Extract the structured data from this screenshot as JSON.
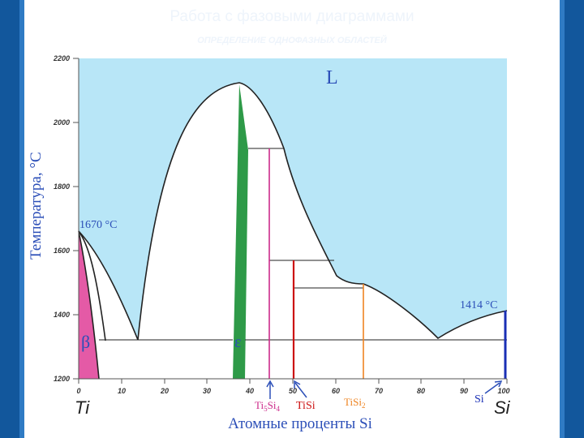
{
  "slide": {
    "title": "Работа с фазовыми диаграммами",
    "subtitle": "ОПРЕДЕЛЕНИЕ ОДНОФАЗНЫХ ОБЛАСТЕЙ"
  },
  "diagram": {
    "y_axis_label": "Температура, °C",
    "x_axis_label": "Атомные проценты Si",
    "y_ticks": [
      "2200",
      "2000",
      "1800",
      "1600",
      "1400",
      "1200"
    ],
    "x_ticks": [
      "0",
      "10",
      "20",
      "30",
      "40",
      "50",
      "60",
      "70",
      "80",
      "90",
      "100"
    ],
    "element_left": "Ti",
    "element_right": "Si",
    "liquid_label": "L",
    "beta_label": "β",
    "epsilon_label": "ε",
    "ti_melting_label": "1670 °C",
    "si_melting_label": "1414 °C",
    "compounds": [
      {
        "base": "Ti",
        "sub1": "5",
        "mid": "Si",
        "sub2": "4",
        "color": "#cc2a8a"
      },
      {
        "base": "TiSi",
        "sub1": "",
        "mid": "",
        "sub2": "",
        "color": "#cc1111"
      },
      {
        "base": "TiSi",
        "sub1": "2",
        "mid": "",
        "sub2": "",
        "color": "#ee8422"
      },
      {
        "base": "Si",
        "sub1": "",
        "mid": "",
        "sub2": "",
        "color": "#1a2fb5"
      }
    ],
    "colors": {
      "liquid": "#b8e6f7",
      "beta": "#e45aa6",
      "epsilon": "#2e9a48",
      "boundary": "#222222",
      "label_blue": "#2c4fb8"
    }
  }
}
